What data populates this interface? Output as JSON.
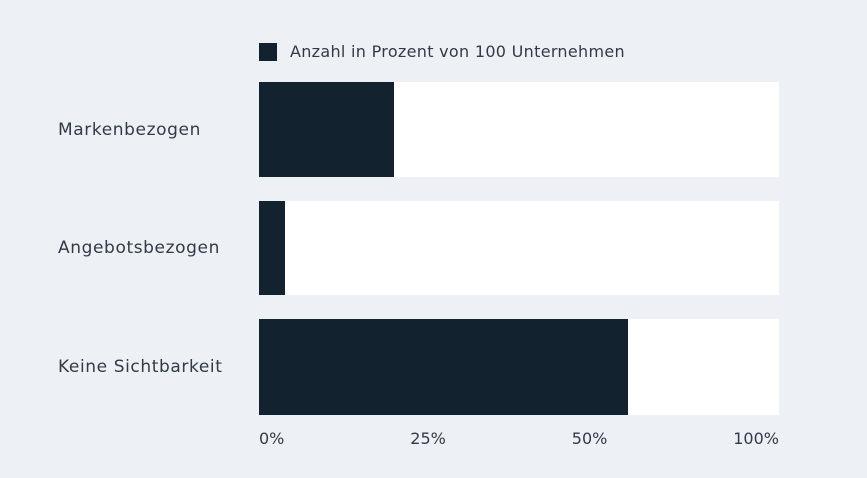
{
  "colors": {
    "background": "#edf1f6",
    "bar_fill": "#13222f",
    "bar_track": "#ffffff",
    "text": "#323a46"
  },
  "chart_data": {
    "type": "bar",
    "orientation": "horizontal",
    "title": "",
    "series_label": "Anzahl in Prozent von 100 Unternehmen",
    "categories": [
      "Markenbezogen",
      "Angebotsbezogen",
      "Keine Sichtbarkeit"
    ],
    "values": [
      26,
      5,
      71
    ],
    "unit": "%",
    "xlabel": "",
    "ylabel": "",
    "xlim": [
      0,
      100
    ],
    "x_tick_labels": [
      "0%",
      "25%",
      "50%",
      "100%"
    ],
    "x_tick_layout": "evenly-spaced",
    "grid": false,
    "legend_position": "top",
    "bar_color": "#13222f",
    "track_color": "#ffffff"
  }
}
